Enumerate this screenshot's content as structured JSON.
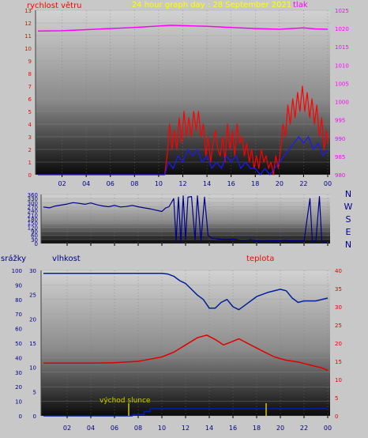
{
  "colors": {
    "background": "#c8c8c8",
    "wind": "#ff0000",
    "gust": "#1a1aff",
    "pressure": "#ff00ff",
    "direction": "#00008b",
    "humidity": "#00209a",
    "temperature": "#e00000",
    "rain": "#00209a",
    "sunrise": "#cccc00",
    "title": "#ffff00",
    "axis_left_top": "#ff0000",
    "axis_right_top": "#ff00ff",
    "axis_dark": "#00008b"
  },
  "chart_data": [
    {
      "type": "line",
      "title": "24 hour graph day : 28 September 2021",
      "left_label": "rychlost větru",
      "right_label": "tlak",
      "x_ticks": [
        "02",
        "04",
        "06",
        "08",
        "10",
        "12",
        "14",
        "16",
        "18",
        "20",
        "22",
        "00"
      ],
      "y_left_ticks": [
        "0",
        "1",
        "2",
        "3",
        "4",
        "5",
        "6",
        "7",
        "8",
        "9",
        "10",
        "11",
        "12",
        "13"
      ],
      "y_right_ticks": [
        "980",
        "985",
        "990",
        "995",
        "1000",
        "1005",
        "1010",
        "1015",
        "1020",
        "1025"
      ],
      "y_left_range": [
        0,
        13
      ],
      "y_right_range": [
        980,
        1025
      ],
      "x_range_hours": [
        0,
        24
      ],
      "series": [
        {
          "key": "pressure",
          "axis": "right",
          "points": [
            [
              0,
              1019.3
            ],
            [
              2,
              1019.4
            ],
            [
              4,
              1019.7
            ],
            [
              6,
              1020.0
            ],
            [
              8,
              1020.3
            ],
            [
              10,
              1020.7
            ],
            [
              11,
              1020.9
            ],
            [
              12,
              1020.8
            ],
            [
              14,
              1020.6
            ],
            [
              16,
              1020.3
            ],
            [
              18,
              1020.0
            ],
            [
              20,
              1019.8
            ],
            [
              22,
              1020.2
            ],
            [
              23,
              1019.9
            ],
            [
              24,
              1019.8
            ]
          ]
        },
        {
          "key": "wind",
          "axis": "left",
          "points": [
            [
              0,
              0
            ],
            [
              10.5,
              0
            ],
            [
              10.7,
              1.5
            ],
            [
              10.9,
              4
            ],
            [
              11.1,
              2
            ],
            [
              11.3,
              3.5
            ],
            [
              11.5,
              2
            ],
            [
              11.7,
              4.5
            ],
            [
              11.9,
              2.5
            ],
            [
              12.1,
              5
            ],
            [
              12.3,
              3
            ],
            [
              12.5,
              4.5
            ],
            [
              12.7,
              3
            ],
            [
              12.9,
              5
            ],
            [
              13.1,
              3.5
            ],
            [
              13.3,
              5
            ],
            [
              13.5,
              3
            ],
            [
              13.7,
              4
            ],
            [
              13.9,
              1.5
            ],
            [
              14.1,
              3
            ],
            [
              14.3,
              1
            ],
            [
              14.5,
              2.5
            ],
            [
              14.7,
              3.5
            ],
            [
              14.9,
              2
            ],
            [
              15.1,
              1.5
            ],
            [
              15.3,
              3
            ],
            [
              15.5,
              1
            ],
            [
              15.7,
              4
            ],
            [
              15.9,
              2
            ],
            [
              16.1,
              3.5
            ],
            [
              16.3,
              1.5
            ],
            [
              16.5,
              4
            ],
            [
              16.7,
              2.5
            ],
            [
              16.9,
              3
            ],
            [
              17.1,
              1.5
            ],
            [
              17.3,
              2.5
            ],
            [
              17.5,
              1
            ],
            [
              17.7,
              2
            ],
            [
              17.9,
              0.5
            ],
            [
              18.1,
              1.5
            ],
            [
              18.3,
              0.5
            ],
            [
              18.5,
              2
            ],
            [
              18.7,
              1
            ],
            [
              18.9,
              1.5
            ],
            [
              19.1,
              0.5
            ],
            [
              19.3,
              1
            ],
            [
              19.5,
              0
            ],
            [
              19.7,
              1.5
            ],
            [
              19.9,
              0.5
            ],
            [
              20.1,
              2
            ],
            [
              20.3,
              4
            ],
            [
              20.5,
              3
            ],
            [
              20.7,
              5.5
            ],
            [
              20.9,
              4
            ],
            [
              21.1,
              6
            ],
            [
              21.3,
              4.5
            ],
            [
              21.5,
              6.5
            ],
            [
              21.7,
              5
            ],
            [
              21.9,
              7
            ],
            [
              22.1,
              5
            ],
            [
              22.3,
              6.5
            ],
            [
              22.5,
              4.5
            ],
            [
              22.7,
              6
            ],
            [
              22.9,
              4
            ],
            [
              23.1,
              5.5
            ],
            [
              23.3,
              3
            ],
            [
              23.5,
              4.5
            ],
            [
              23.7,
              2
            ],
            [
              23.9,
              3.5
            ],
            [
              24,
              2.5
            ]
          ]
        },
        {
          "key": "gust",
          "axis": "left",
          "points": [
            [
              0,
              0
            ],
            [
              10.5,
              0
            ],
            [
              10.8,
              1
            ],
            [
              11.2,
              0.5
            ],
            [
              11.6,
              1.5
            ],
            [
              12.0,
              1
            ],
            [
              12.4,
              2
            ],
            [
              12.8,
              1.5
            ],
            [
              13.2,
              2
            ],
            [
              13.6,
              1
            ],
            [
              14.0,
              1.5
            ],
            [
              14.4,
              0.5
            ],
            [
              14.8,
              1
            ],
            [
              15.2,
              0.5
            ],
            [
              15.6,
              1.5
            ],
            [
              16.0,
              1
            ],
            [
              16.4,
              1.5
            ],
            [
              16.8,
              0.5
            ],
            [
              17.2,
              1
            ],
            [
              17.6,
              0.5
            ],
            [
              18.0,
              0.5
            ],
            [
              18.4,
              0
            ],
            [
              18.8,
              0.5
            ],
            [
              19.2,
              0
            ],
            [
              19.6,
              0.5
            ],
            [
              20.0,
              1
            ],
            [
              20.4,
              1.5
            ],
            [
              20.8,
              2
            ],
            [
              21.2,
              2.5
            ],
            [
              21.6,
              3
            ],
            [
              22.0,
              2.5
            ],
            [
              22.4,
              3
            ],
            [
              22.8,
              2
            ],
            [
              23.2,
              2.5
            ],
            [
              23.6,
              1.5
            ],
            [
              24,
              2
            ]
          ]
        }
      ]
    },
    {
      "type": "scatter",
      "title": "",
      "y_ticks": [
        "0",
        "30",
        "60",
        "90",
        "120",
        "150",
        "180",
        "210",
        "240",
        "270",
        "300",
        "330",
        "360"
      ],
      "y_range": [
        0,
        360
      ],
      "x_range_hours": [
        0,
        24
      ],
      "direction_labels": [
        "N",
        "W",
        "S",
        "E",
        "N"
      ],
      "series": [
        {
          "key": "direction",
          "points": [
            [
              0,
              268
            ],
            [
              0.5,
              262
            ],
            [
              1,
              275
            ],
            [
              1.5,
              282
            ],
            [
              2,
              290
            ],
            [
              2.5,
              300
            ],
            [
              3,
              295
            ],
            [
              3.5,
              288
            ],
            [
              4,
              298
            ],
            [
              4.5,
              285
            ],
            [
              5,
              276
            ],
            [
              5.5,
              270
            ],
            [
              6,
              280
            ],
            [
              6.5,
              268
            ],
            [
              7,
              272
            ],
            [
              7.5,
              280
            ],
            [
              8,
              270
            ],
            [
              8.5,
              262
            ],
            [
              9,
              255
            ],
            [
              9.5,
              245
            ],
            [
              10,
              235
            ],
            [
              10.3,
              260
            ],
            [
              10.6,
              270
            ],
            [
              11,
              330
            ],
            [
              11.2,
              20
            ],
            [
              11.4,
              340
            ],
            [
              11.6,
              10
            ],
            [
              11.8,
              350
            ],
            [
              12,
              30
            ],
            [
              12.2,
              340
            ],
            [
              12.5,
              345
            ],
            [
              12.8,
              25
            ],
            [
              13,
              350
            ],
            [
              13.3,
              20
            ],
            [
              13.6,
              340
            ],
            [
              13.9,
              60
            ],
            [
              14.2,
              40
            ],
            [
              14.6,
              35
            ],
            [
              15,
              30
            ],
            [
              15.5,
              28
            ],
            [
              16,
              32
            ],
            [
              16.5,
              25
            ],
            [
              17,
              22
            ],
            [
              17.5,
              28
            ],
            [
              18,
              20
            ],
            [
              18.5,
              15
            ],
            [
              19,
              22
            ],
            [
              19.5,
              18
            ],
            [
              20,
              20
            ],
            [
              20.5,
              25
            ],
            [
              21,
              18
            ],
            [
              21.5,
              22
            ],
            [
              22,
              20
            ],
            [
              22.5,
              330
            ],
            [
              22.7,
              15
            ],
            [
              23,
              18
            ],
            [
              23.3,
              345
            ],
            [
              23.5,
              15
            ],
            [
              23.8,
              12
            ],
            [
              24,
              18
            ]
          ]
        }
      ]
    },
    {
      "type": "line",
      "title": "",
      "labels": {
        "rain": "srážky",
        "humidity": "vlhkost",
        "temperature": "teplota",
        "sunrise": "východ slunce"
      },
      "x_ticks": [
        "02",
        "04",
        "06",
        "08",
        "10",
        "12",
        "14",
        "16",
        "18",
        "20",
        "22",
        "00"
      ],
      "y_rain_ticks": [
        "0",
        "10",
        "20",
        "30",
        "40",
        "50",
        "60",
        "70",
        "80",
        "90",
        "100"
      ],
      "y_humidity_ticks": [
        "0",
        "5",
        "10",
        "15",
        "20",
        "25",
        "30"
      ],
      "y_temp_ticks": [
        "0",
        "5",
        "10",
        "15",
        "20",
        "25",
        "30",
        "35",
        "40"
      ],
      "y_rain_range": [
        0,
        100
      ],
      "y_humidity_range": [
        0,
        30
      ],
      "y_temp_range": [
        0,
        40
      ],
      "x_range_hours": [
        0,
        24
      ],
      "series": [
        {
          "key": "humidity",
          "axis": "left",
          "points": [
            [
              0,
              98
            ],
            [
              2,
              98
            ],
            [
              4,
              98
            ],
            [
              6,
              98
            ],
            [
              8,
              98
            ],
            [
              10,
              98
            ],
            [
              10.5,
              97.5
            ],
            [
              11,
              96
            ],
            [
              11.5,
              93
            ],
            [
              12,
              91
            ],
            [
              12.5,
              87
            ],
            [
              13,
              83
            ],
            [
              13.5,
              80
            ],
            [
              14,
              74
            ],
            [
              14.5,
              74
            ],
            [
              15,
              78
            ],
            [
              15.5,
              80
            ],
            [
              16,
              75
            ],
            [
              16.5,
              73
            ],
            [
              17,
              76
            ],
            [
              17.5,
              79
            ],
            [
              18,
              82
            ],
            [
              19,
              85
            ],
            [
              20,
              87
            ],
            [
              20.5,
              86
            ],
            [
              21,
              81
            ],
            [
              21.5,
              78
            ],
            [
              22,
              79
            ],
            [
              23,
              79
            ],
            [
              24,
              81
            ]
          ]
        },
        {
          "key": "temperature",
          "axis": "right",
          "points": [
            [
              0,
              14.5
            ],
            [
              2,
              14.5
            ],
            [
              4,
              14.5
            ],
            [
              6,
              14.6
            ],
            [
              8,
              15.0
            ],
            [
              10,
              16.2
            ],
            [
              11,
              17.5
            ],
            [
              12,
              19.5
            ],
            [
              13,
              21.5
            ],
            [
              13.8,
              22.2
            ],
            [
              14.5,
              21.0
            ],
            [
              15.2,
              19.5
            ],
            [
              16,
              20.5
            ],
            [
              16.5,
              21.2
            ],
            [
              17.5,
              19.5
            ],
            [
              18.5,
              17.8
            ],
            [
              19.5,
              16.2
            ],
            [
              20.5,
              15.3
            ],
            [
              21.5,
              14.8
            ],
            [
              22.5,
              14.0
            ],
            [
              23.5,
              13.2
            ],
            [
              24,
              12.5
            ]
          ]
        },
        {
          "key": "rain",
          "axis": "left",
          "points": [
            [
              0,
              0
            ],
            [
              7.5,
              0
            ],
            [
              7.5,
              1
            ],
            [
              8.5,
              1
            ],
            [
              8.5,
              3
            ],
            [
              9,
              5
            ],
            [
              24,
              5
            ]
          ]
        }
      ],
      "sunrise_hour": 7.2,
      "daylight_marker_hours": [
        18.8
      ]
    }
  ]
}
